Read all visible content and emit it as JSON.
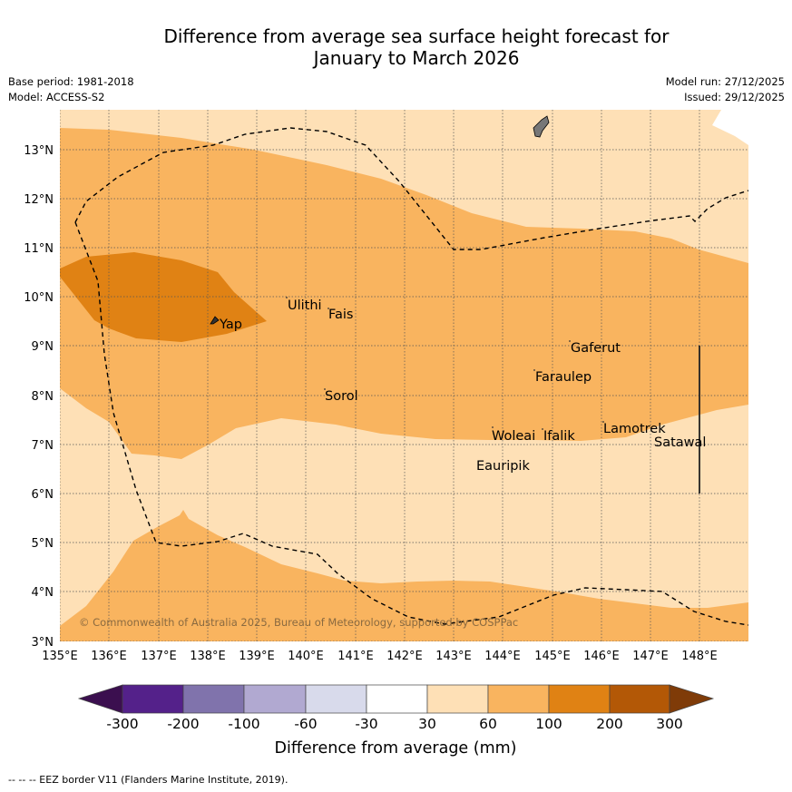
{
  "title_line1": "Difference from average sea surface height forecast for",
  "title_line2": "January to March 2026",
  "base_period": "Base period: 1981-2018",
  "model": "Model: ACCESS-S2",
  "model_run": "Model run: 27/12/2025",
  "issued": "Issued: 29/12/2025",
  "copyright": "© Commonwealth of Australia 2025, Bureau of Meteorology, supported by COSPPac",
  "lon_ticks": [
    "135°E",
    "136°E",
    "137°E",
    "138°E",
    "139°E",
    "140°E",
    "141°E",
    "142°E",
    "143°E",
    "144°E",
    "145°E",
    "146°E",
    "147°E",
    "148°E"
  ],
  "lat_ticks": [
    "3°N",
    "4°N",
    "5°N",
    "6°N",
    "7°N",
    "8°N",
    "9°N",
    "10°N",
    "11°N",
    "12°N",
    "13°N"
  ],
  "places": {
    "yap": "Yap",
    "ulithi": "Ulithi",
    "fais": "Fais",
    "sorol": "Sorol",
    "gaferut": "Gaferut",
    "faraulep": "Faraulep",
    "lamotrek": "Lamotrek",
    "satawal": "Satawal",
    "woleai": "Woleai",
    "ifalik": "Ifalik",
    "eauripik": "Eauripik"
  },
  "colorbar": {
    "ticks": [
      "-300",
      "-200",
      "-100",
      "-60",
      "-30",
      "30",
      "60",
      "100",
      "200",
      "300"
    ],
    "colors": [
      "#3b0f4f",
      "#54218a",
      "#8073ac",
      "#b1a9d1",
      "#d8daeb",
      "#ffffff",
      "#fee0b6",
      "#f9b45f",
      "#e08214",
      "#b35806",
      "#7f3b08"
    ],
    "label": "Difference from average (mm)"
  },
  "legend_note": "--  --  -- EEZ border V11 (Flanders Marine Institute, 2019)."
}
